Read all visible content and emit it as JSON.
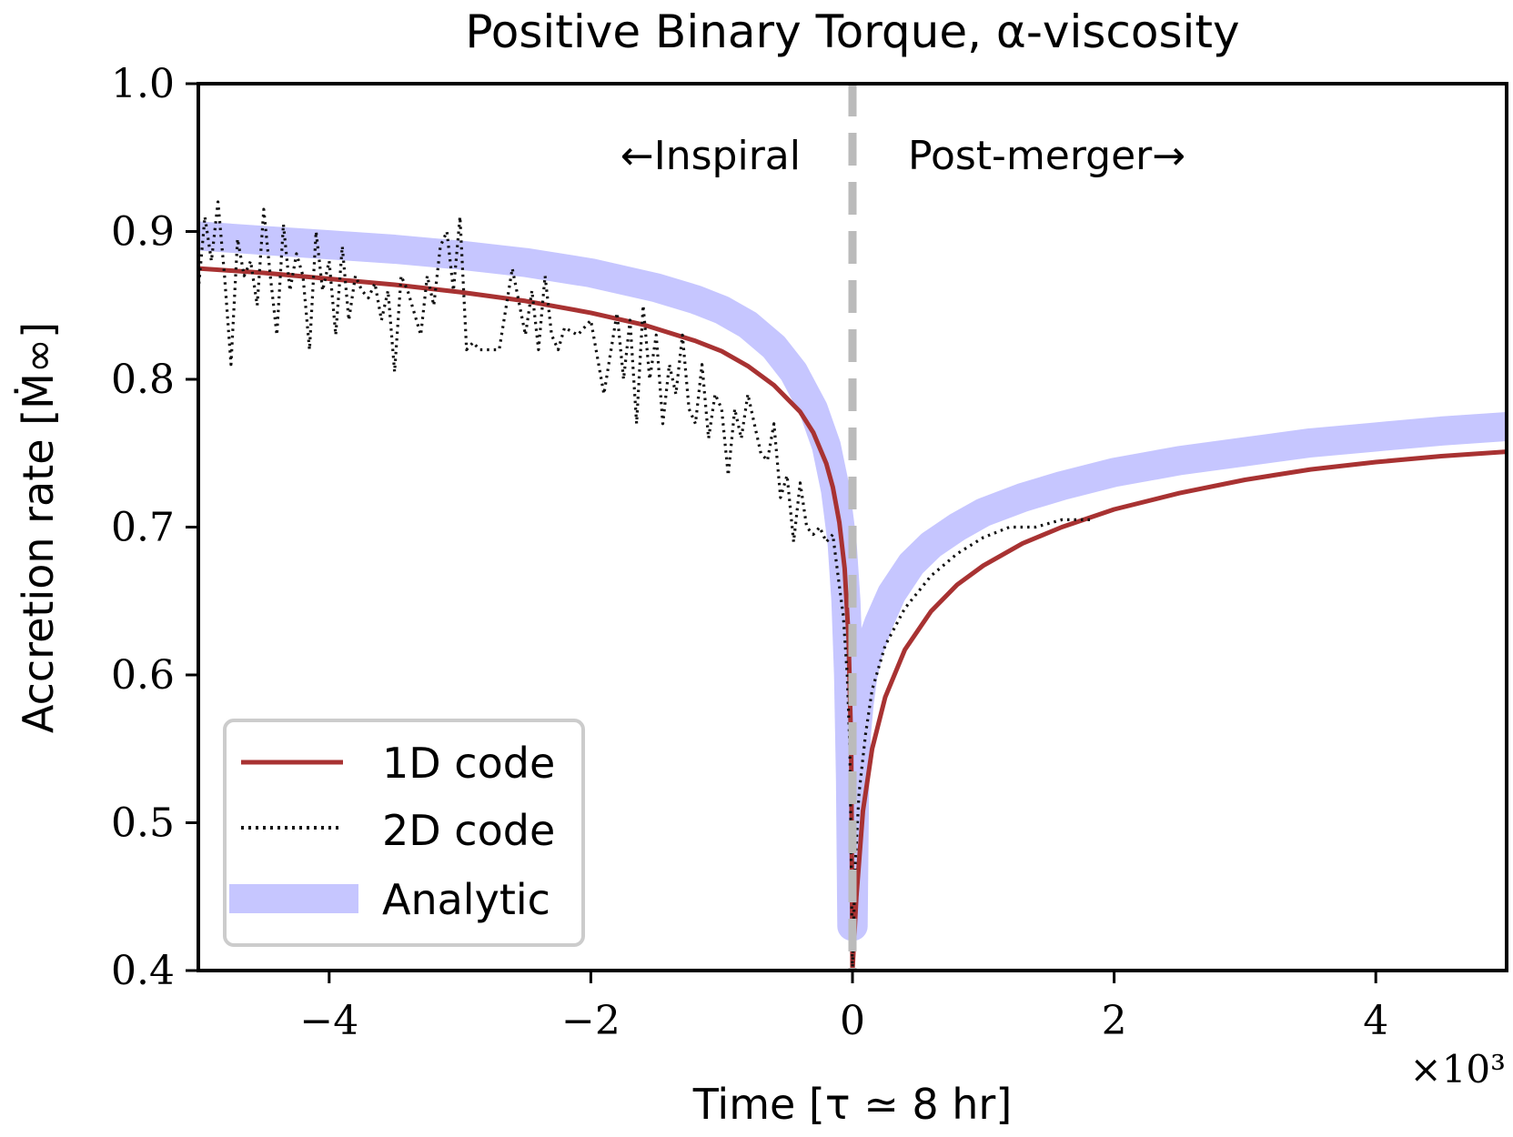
{
  "chart_data": {
    "type": "line",
    "title": "Positive Binary Torque, α-viscosity",
    "xlabel": "Time [τ ≃ 8 hr]",
    "ylabel": "Accretion rate [Ṁ∞]",
    "x_multiplier": "×10³",
    "xlim": [
      -5.0,
      5.0
    ],
    "ylim": [
      0.4,
      1.0
    ],
    "xticks": [
      -4,
      -2,
      0,
      2,
      4
    ],
    "xtick_labels": [
      "−4",
      "−2",
      "0",
      "2",
      "4"
    ],
    "yticks": [
      0.4,
      0.5,
      0.6,
      0.7,
      0.8,
      0.9,
      1.0
    ],
    "ytick_labels": [
      "0.4",
      "0.5",
      "0.6",
      "0.7",
      "0.8",
      "0.9",
      "1.0"
    ],
    "grid": false,
    "legend_position": "lower-left",
    "annotations": {
      "inspiral": "←Inspiral",
      "postmerger": "Post-merger→",
      "merger_line_x": 0.0
    },
    "series": [
      {
        "name": "1D code",
        "style": "solid",
        "color": "#a83232",
        "x": [
          -5.0,
          -4.5,
          -4.0,
          -3.5,
          -3.0,
          -2.5,
          -2.0,
          -1.6,
          -1.2,
          -1.0,
          -0.8,
          -0.6,
          -0.4,
          -0.3,
          -0.2,
          -0.15,
          -0.1,
          -0.06,
          -0.03,
          -0.01,
          0.0,
          0.03,
          0.08,
          0.15,
          0.25,
          0.4,
          0.6,
          0.8,
          1.0,
          1.3,
          1.6,
          2.0,
          2.5,
          3.0,
          3.5,
          4.0,
          4.5,
          5.0
        ],
        "y": [
          0.875,
          0.872,
          0.868,
          0.864,
          0.859,
          0.853,
          0.845,
          0.837,
          0.826,
          0.819,
          0.809,
          0.796,
          0.778,
          0.764,
          0.743,
          0.727,
          0.703,
          0.672,
          0.625,
          0.55,
          0.4,
          0.45,
          0.508,
          0.55,
          0.585,
          0.617,
          0.643,
          0.661,
          0.674,
          0.689,
          0.7,
          0.712,
          0.723,
          0.732,
          0.739,
          0.744,
          0.748,
          0.751
        ]
      },
      {
        "name": "2D code",
        "style": "dotted",
        "color": "#111111",
        "x": [
          -5.0,
          -4.95,
          -4.9,
          -4.85,
          -4.8,
          -4.75,
          -4.7,
          -4.65,
          -4.6,
          -4.55,
          -4.5,
          -4.45,
          -4.4,
          -4.35,
          -4.3,
          -4.25,
          -4.2,
          -4.15,
          -4.1,
          -4.05,
          -4.0,
          -3.95,
          -3.9,
          -3.85,
          -3.8,
          -3.75,
          -3.7,
          -3.65,
          -3.6,
          -3.55,
          -3.5,
          -3.45,
          -3.4,
          -3.35,
          -3.3,
          -3.25,
          -3.2,
          -3.15,
          -3.1,
          -3.05,
          -3.0,
          -2.95,
          -2.9,
          -2.85,
          -2.8,
          -2.7,
          -2.6,
          -2.5,
          -2.45,
          -2.4,
          -2.35,
          -2.3,
          -2.25,
          -2.2,
          -2.1,
          -2.0,
          -1.9,
          -1.8,
          -1.75,
          -1.7,
          -1.65,
          -1.6,
          -1.55,
          -1.5,
          -1.45,
          -1.4,
          -1.35,
          -1.3,
          -1.25,
          -1.2,
          -1.15,
          -1.1,
          -1.05,
          -1.0,
          -0.95,
          -0.9,
          -0.85,
          -0.8,
          -0.75,
          -0.7,
          -0.65,
          -0.6,
          -0.55,
          -0.5,
          -0.45,
          -0.4,
          -0.35,
          -0.3,
          -0.25,
          -0.2,
          -0.15,
          -0.1,
          -0.07,
          -0.04,
          -0.02,
          0.0,
          0.02,
          0.05,
          0.1,
          0.15,
          0.25,
          0.4,
          0.6,
          0.8,
          1.0,
          1.2,
          1.4,
          1.6,
          1.85
        ],
        "y": [
          0.86,
          0.91,
          0.88,
          0.92,
          0.87,
          0.81,
          0.895,
          0.87,
          0.88,
          0.85,
          0.915,
          0.87,
          0.83,
          0.905,
          0.86,
          0.885,
          0.87,
          0.82,
          0.9,
          0.86,
          0.88,
          0.83,
          0.89,
          0.84,
          0.87,
          0.86,
          0.855,
          0.865,
          0.84,
          0.86,
          0.805,
          0.87,
          0.86,
          0.845,
          0.83,
          0.87,
          0.85,
          0.89,
          0.9,
          0.86,
          0.91,
          0.82,
          0.825,
          0.82,
          0.82,
          0.82,
          0.875,
          0.83,
          0.86,
          0.82,
          0.87,
          0.83,
          0.82,
          0.835,
          0.83,
          0.84,
          0.79,
          0.845,
          0.8,
          0.84,
          0.77,
          0.85,
          0.8,
          0.83,
          0.77,
          0.81,
          0.79,
          0.83,
          0.78,
          0.77,
          0.81,
          0.76,
          0.79,
          0.78,
          0.735,
          0.78,
          0.76,
          0.79,
          0.77,
          0.75,
          0.745,
          0.77,
          0.72,
          0.735,
          0.69,
          0.73,
          0.7,
          0.695,
          0.7,
          0.69,
          0.695,
          0.66,
          0.64,
          0.6,
          0.55,
          0.4,
          0.47,
          0.52,
          0.56,
          0.59,
          0.62,
          0.645,
          0.667,
          0.682,
          0.693,
          0.7,
          0.7,
          0.705,
          0.705
        ]
      },
      {
        "name": "Analytic",
        "style": "thick-band",
        "color": "#c6c6ff",
        "x": [
          -5.0,
          -4.5,
          -4.0,
          -3.5,
          -3.0,
          -2.5,
          -2.0,
          -1.5,
          -1.2,
          -1.0,
          -0.8,
          -0.6,
          -0.45,
          -0.3,
          -0.2,
          -0.13,
          -0.08,
          -0.05,
          -0.03,
          -0.015,
          -0.005,
          0.005,
          0.015,
          0.03,
          0.05,
          0.08,
          0.12,
          0.2,
          0.3,
          0.45,
          0.6,
          0.8,
          1.0,
          1.3,
          1.6,
          2.0,
          2.5,
          3.0,
          3.5,
          4.0,
          4.5,
          5.0
        ],
        "y": [
          0.897,
          0.894,
          0.891,
          0.888,
          0.884,
          0.879,
          0.872,
          0.862,
          0.854,
          0.847,
          0.837,
          0.822,
          0.805,
          0.78,
          0.755,
          0.725,
          0.69,
          0.65,
          0.6,
          0.53,
          0.43,
          0.43,
          0.52,
          0.56,
          0.58,
          0.6,
          0.615,
          0.635,
          0.655,
          0.675,
          0.688,
          0.7,
          0.71,
          0.72,
          0.728,
          0.737,
          0.745,
          0.751,
          0.757,
          0.761,
          0.765,
          0.768
        ]
      }
    ]
  }
}
